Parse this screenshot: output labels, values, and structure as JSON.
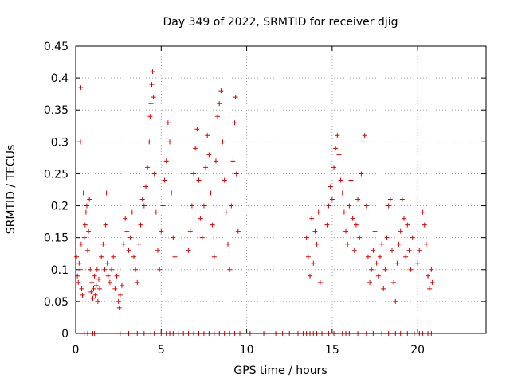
{
  "chart_data": {
    "type": "scatter",
    "title": "Day 349 of 2022, SRMTID for receiver djig",
    "xlabel": "GPS time / hours",
    "ylabel": "SRMTID / TECUs",
    "xlim": [
      0,
      24
    ],
    "ylim": [
      0,
      0.45
    ],
    "xticks": [
      0,
      5,
      10,
      15,
      20
    ],
    "xtick_labels": [
      "0",
      "5",
      "10",
      "15",
      "20"
    ],
    "yticks": [
      0,
      0.05,
      0.1,
      0.15,
      0.2,
      0.25,
      0.3,
      0.35,
      0.4,
      0.45
    ],
    "ytick_labels": [
      "0",
      "0.05",
      "0.1",
      "0.15",
      "0.2",
      "0.25",
      "0.3",
      "0.35",
      "0.4",
      "0.45"
    ],
    "grid": true,
    "legend": "none",
    "marker": "plus",
    "color": "#e00000",
    "series": [
      {
        "points": [
          [
            0.05,
            0.12
          ],
          [
            0.1,
            0.09
          ],
          [
            0.15,
            0.08
          ],
          [
            0.2,
            0.11
          ],
          [
            0.25,
            0.1
          ],
          [
            0.28,
            0.3
          ],
          [
            0.3,
            0.385
          ],
          [
            0.32,
            0.14
          ],
          [
            0.35,
            0.07
          ],
          [
            0.4,
            0.06
          ],
          [
            0.45,
            0.22
          ],
          [
            0.5,
            0.15
          ],
          [
            0.55,
            0.17
          ],
          [
            0.6,
            0.19
          ],
          [
            0.65,
            0.2
          ],
          [
            0.7,
            0.13
          ],
          [
            0.75,
            0.16
          ],
          [
            0.8,
            0.21
          ],
          [
            0.85,
            0.1
          ],
          [
            0.9,
            0.065
          ],
          [
            0.95,
            0.08
          ],
          [
            1.0,
            0.055
          ],
          [
            1.05,
            0.07
          ],
          [
            1.1,
            0.09
          ],
          [
            1.15,
            0.06
          ],
          [
            1.2,
            0.075
          ],
          [
            1.25,
            0.1
          ],
          [
            1.3,
            0.05
          ],
          [
            1.35,
            0.085
          ],
          [
            1.4,
            0.07
          ],
          [
            1.5,
            0.12
          ],
          [
            1.6,
            0.14
          ],
          [
            1.7,
            0.1
          ],
          [
            1.75,
            0.17
          ],
          [
            1.8,
            0.22
          ],
          [
            1.85,
            0.11
          ],
          [
            1.9,
            0.09
          ],
          [
            2.0,
            0.08
          ],
          [
            2.1,
            0.1
          ],
          [
            2.2,
            0.12
          ],
          [
            2.3,
            0.07
          ],
          [
            2.4,
            0.09
          ],
          [
            2.5,
            0.05
          ],
          [
            2.55,
            0.04
          ],
          [
            2.6,
            0.06
          ],
          [
            2.7,
            0.075
          ],
          [
            2.8,
            0.14
          ],
          [
            2.9,
            0.18
          ],
          [
            3.0,
            0.16
          ],
          [
            3.1,
            0.13
          ],
          [
            3.2,
            0.15
          ],
          [
            3.3,
            0.19
          ],
          [
            3.4,
            0.12
          ],
          [
            3.5,
            0.1
          ],
          [
            3.6,
            0.08
          ],
          [
            3.7,
            0.14
          ],
          [
            3.8,
            0.17
          ],
          [
            3.9,
            0.21
          ],
          [
            4.0,
            0.2
          ],
          [
            4.1,
            0.23
          ],
          [
            4.2,
            0.26
          ],
          [
            4.3,
            0.3
          ],
          [
            4.35,
            0.34
          ],
          [
            4.4,
            0.36
          ],
          [
            4.45,
            0.39
          ],
          [
            4.5,
            0.41
          ],
          [
            4.55,
            0.37
          ],
          [
            4.6,
            0.25
          ],
          [
            4.7,
            0.19
          ],
          [
            4.8,
            0.13
          ],
          [
            4.9,
            0.1
          ],
          [
            5.0,
            0.16
          ],
          [
            5.1,
            0.2
          ],
          [
            5.2,
            0.24
          ],
          [
            5.3,
            0.27
          ],
          [
            5.4,
            0.33
          ],
          [
            5.5,
            0.3
          ],
          [
            5.6,
            0.22
          ],
          [
            5.7,
            0.15
          ],
          [
            5.8,
            0.12
          ],
          [
            6.6,
            0.13
          ],
          [
            6.7,
            0.16
          ],
          [
            6.8,
            0.2
          ],
          [
            6.9,
            0.25
          ],
          [
            7.0,
            0.29
          ],
          [
            7.1,
            0.32
          ],
          [
            7.2,
            0.24
          ],
          [
            7.3,
            0.18
          ],
          [
            7.4,
            0.15
          ],
          [
            7.5,
            0.2
          ],
          [
            7.6,
            0.26
          ],
          [
            7.7,
            0.31
          ],
          [
            7.8,
            0.28
          ],
          [
            7.9,
            0.22
          ],
          [
            8.0,
            0.17
          ],
          [
            8.1,
            0.12
          ],
          [
            8.2,
            0.27
          ],
          [
            8.3,
            0.34
          ],
          [
            8.4,
            0.36
          ],
          [
            8.5,
            0.38
          ],
          [
            8.6,
            0.3
          ],
          [
            8.7,
            0.24
          ],
          [
            8.8,
            0.19
          ],
          [
            8.9,
            0.14
          ],
          [
            9.0,
            0.1
          ],
          [
            9.1,
            0.2
          ],
          [
            9.2,
            0.27
          ],
          [
            9.3,
            0.33
          ],
          [
            9.35,
            0.37
          ],
          [
            9.4,
            0.25
          ],
          [
            9.5,
            0.16
          ],
          [
            13.5,
            0.15
          ],
          [
            13.6,
            0.12
          ],
          [
            13.7,
            0.09
          ],
          [
            13.8,
            0.18
          ],
          [
            13.9,
            0.11
          ],
          [
            14.0,
            0.16
          ],
          [
            14.1,
            0.14
          ],
          [
            14.2,
            0.19
          ],
          [
            14.3,
            0.08
          ],
          [
            14.7,
            0.17
          ],
          [
            14.8,
            0.2
          ],
          [
            14.9,
            0.23
          ],
          [
            15.0,
            0.21
          ],
          [
            15.1,
            0.26
          ],
          [
            15.2,
            0.29
          ],
          [
            15.3,
            0.31
          ],
          [
            15.4,
            0.28
          ],
          [
            15.5,
            0.24
          ],
          [
            15.6,
            0.22
          ],
          [
            15.7,
            0.19
          ],
          [
            15.8,
            0.16
          ],
          [
            15.9,
            0.14
          ],
          [
            16.0,
            0.2
          ],
          [
            16.1,
            0.24
          ],
          [
            16.2,
            0.18
          ],
          [
            16.3,
            0.13
          ],
          [
            16.4,
            0.17
          ],
          [
            16.5,
            0.21
          ],
          [
            16.6,
            0.15
          ],
          [
            16.7,
            0.25
          ],
          [
            16.8,
            0.3
          ],
          [
            16.9,
            0.31
          ],
          [
            17.0,
            0.2
          ],
          [
            17.1,
            0.12
          ],
          [
            17.2,
            0.08
          ],
          [
            17.3,
            0.1
          ],
          [
            17.4,
            0.13
          ],
          [
            17.5,
            0.16
          ],
          [
            17.6,
            0.11
          ],
          [
            17.7,
            0.09
          ],
          [
            17.8,
            0.12
          ],
          [
            17.9,
            0.14
          ],
          [
            18.0,
            0.07
          ],
          [
            18.1,
            0.1
          ],
          [
            18.2,
            0.15
          ],
          [
            18.3,
            0.2
          ],
          [
            18.4,
            0.21
          ],
          [
            18.5,
            0.13
          ],
          [
            18.6,
            0.08
          ],
          [
            18.7,
            0.05
          ],
          [
            18.8,
            0.11
          ],
          [
            18.9,
            0.14
          ],
          [
            19.0,
            0.16
          ],
          [
            19.1,
            0.21
          ],
          [
            19.2,
            0.18
          ],
          [
            19.3,
            0.12
          ],
          [
            19.4,
            0.17
          ],
          [
            19.5,
            0.13
          ],
          [
            19.6,
            0.1
          ],
          [
            19.7,
            0.15
          ],
          [
            20.0,
            0.11
          ],
          [
            20.1,
            0.13
          ],
          [
            20.3,
            0.19
          ],
          [
            20.4,
            0.17
          ],
          [
            20.5,
            0.14
          ],
          [
            20.6,
            0.09
          ],
          [
            20.7,
            0.07
          ],
          [
            20.8,
            0.1
          ],
          [
            20.85,
            0.08
          ]
        ]
      },
      {
        "points": [
          [
            0.5,
            0
          ],
          [
            0.7,
            0
          ],
          [
            1.0,
            0
          ],
          [
            1.1,
            0
          ],
          [
            2.6,
            0
          ],
          [
            3.1,
            0
          ],
          [
            3.6,
            0
          ],
          [
            4.0,
            0
          ],
          [
            4.4,
            0
          ],
          [
            4.6,
            0
          ],
          [
            5.0,
            0
          ],
          [
            5.3,
            0
          ],
          [
            5.5,
            0
          ],
          [
            5.7,
            0
          ],
          [
            6.0,
            0
          ],
          [
            6.3,
            0
          ],
          [
            6.6,
            0
          ],
          [
            6.9,
            0
          ],
          [
            7.2,
            0
          ],
          [
            7.5,
            0
          ],
          [
            7.8,
            0
          ],
          [
            8.1,
            0
          ],
          [
            8.4,
            0
          ],
          [
            8.7,
            0
          ],
          [
            9.0,
            0
          ],
          [
            9.3,
            0
          ],
          [
            9.6,
            0
          ],
          [
            10.2,
            0
          ],
          [
            10.6,
            0
          ],
          [
            11.0,
            0
          ],
          [
            11.3,
            0
          ],
          [
            11.7,
            0
          ],
          [
            12.1,
            0
          ],
          [
            12.5,
            0
          ],
          [
            13.0,
            0
          ],
          [
            13.3,
            0
          ],
          [
            13.5,
            0
          ],
          [
            13.7,
            0
          ],
          [
            13.9,
            0
          ],
          [
            14.1,
            0
          ],
          [
            14.4,
            0
          ],
          [
            14.8,
            0
          ],
          [
            15.1,
            0
          ],
          [
            15.4,
            0
          ],
          [
            15.6,
            0
          ],
          [
            15.8,
            0
          ],
          [
            16.0,
            0
          ],
          [
            16.5,
            0
          ],
          [
            16.8,
            0
          ],
          [
            17.0,
            0
          ],
          [
            17.4,
            0
          ],
          [
            17.9,
            0
          ],
          [
            18.3,
            0
          ],
          [
            18.7,
            0
          ],
          [
            19.0,
            0
          ],
          [
            19.4,
            0
          ],
          [
            19.8,
            0
          ],
          [
            20.1,
            0
          ],
          [
            20.3,
            0
          ],
          [
            20.6,
            0
          ],
          [
            20.8,
            0
          ]
        ]
      }
    ]
  }
}
